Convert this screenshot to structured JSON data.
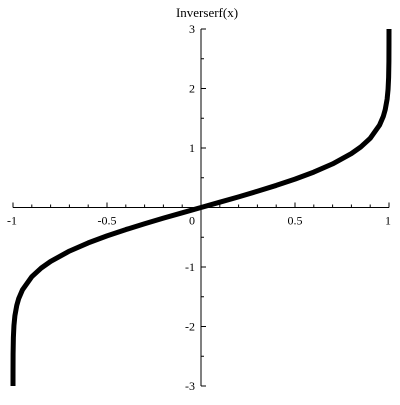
{
  "chart_data": {
    "type": "line",
    "title": "",
    "xlabel": "",
    "ylabel": "Inverserf(x)",
    "xlim": [
      -1,
      1
    ],
    "ylim": [
      -3,
      3
    ],
    "grid": false,
    "legend": "none",
    "x_ticks": [
      -1,
      -0.5,
      0,
      0.5,
      1
    ],
    "x_tick_labels": [
      "-1",
      "-0.5",
      "0",
      "0.5",
      "1"
    ],
    "y_ticks": [
      -3,
      -2,
      -1,
      1,
      2,
      3
    ],
    "y_tick_labels": [
      "-3",
      "-2",
      "-1",
      "1",
      "2",
      "3"
    ],
    "series": [
      {
        "name": "",
        "color": "#000000",
        "x": [
          -0.99998,
          -0.9999,
          -0.9995,
          -0.998,
          -0.995,
          -0.99,
          -0.98,
          -0.97,
          -0.95,
          -0.9,
          -0.85,
          -0.8,
          -0.7,
          -0.6,
          -0.5,
          -0.4,
          -0.3,
          -0.2,
          -0.1,
          0,
          0.1,
          0.2,
          0.3,
          0.4,
          0.5,
          0.6,
          0.7,
          0.8,
          0.85,
          0.9,
          0.95,
          0.97,
          0.98,
          0.99,
          0.995,
          0.998,
          0.9995,
          0.9999,
          0.99998
        ],
        "y": [
          -3.0,
          -2.751,
          -2.456,
          -2.185,
          -1.985,
          -1.821,
          -1.645,
          -1.534,
          -1.386,
          -1.163,
          -1.018,
          -0.906,
          -0.733,
          -0.595,
          -0.477,
          -0.371,
          -0.273,
          -0.179,
          -0.089,
          0,
          0.089,
          0.179,
          0.273,
          0.371,
          0.477,
          0.595,
          0.733,
          0.906,
          1.018,
          1.163,
          1.386,
          1.534,
          1.645,
          1.821,
          1.985,
          2.185,
          2.456,
          2.751,
          3.0
        ]
      }
    ]
  }
}
